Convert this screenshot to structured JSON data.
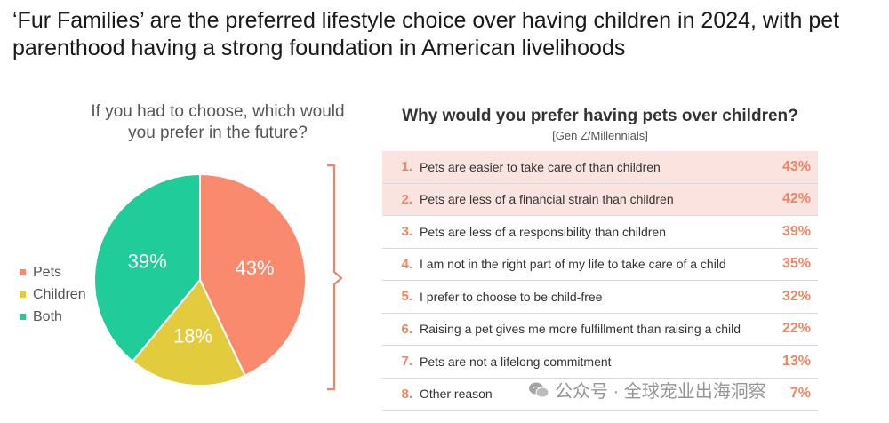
{
  "title": "‘Fur Families’ are the preferred lifestyle choice over having children in 2024, with pet parenthood having a strong foundation in American livelihoods",
  "chart_data": [
    {
      "type": "pie",
      "title": "If you had to choose, which would you prefer in the future?",
      "categories": [
        "Pets",
        "Children",
        "Both"
      ],
      "values": [
        43,
        18,
        39
      ],
      "labels": [
        "43%",
        "18%",
        "39%"
      ],
      "colors": [
        "#fa8a6e",
        "#e2cb3c",
        "#1fcc9a"
      ],
      "legend_position": "left"
    },
    {
      "type": "table",
      "title": "Why would you prefer having pets over children?",
      "subtitle": "[Gen Z/Millennials]",
      "accent_color": "#f08566",
      "highlight_color": "#fbe3df",
      "rows": [
        {
          "rank": "1.",
          "reason": "Pets are easier to take care of than children",
          "value": 43,
          "label": "43%",
          "highlight": true
        },
        {
          "rank": "2.",
          "reason": "Pets are less of a financial strain than children",
          "value": 42,
          "label": "42%",
          "highlight": true
        },
        {
          "rank": "3.",
          "reason": "Pets are less of a responsibility than children",
          "value": 39,
          "label": "39%",
          "highlight": false
        },
        {
          "rank": "4.",
          "reason": "I am not in the right part of my life to take care of a child",
          "value": 35,
          "label": "35%",
          "highlight": false
        },
        {
          "rank": "5.",
          "reason": "I prefer to choose to be child-free",
          "value": 32,
          "label": "32%",
          "highlight": false
        },
        {
          "rank": "6.",
          "reason": "Raising a pet gives me more fulfillment than raising a child",
          "value": 22,
          "label": "22%",
          "highlight": false
        },
        {
          "rank": "7.",
          "reason": "Pets are not a lifelong commitment",
          "value": 13,
          "label": "13%",
          "highlight": false
        },
        {
          "rank": "8.",
          "reason": "Other reason",
          "value": 7,
          "label": "7%",
          "highlight": false
        }
      ]
    }
  ],
  "watermark": {
    "icon": "wechat-icon",
    "text": "公众号 · 全球宠业出海洞察"
  }
}
